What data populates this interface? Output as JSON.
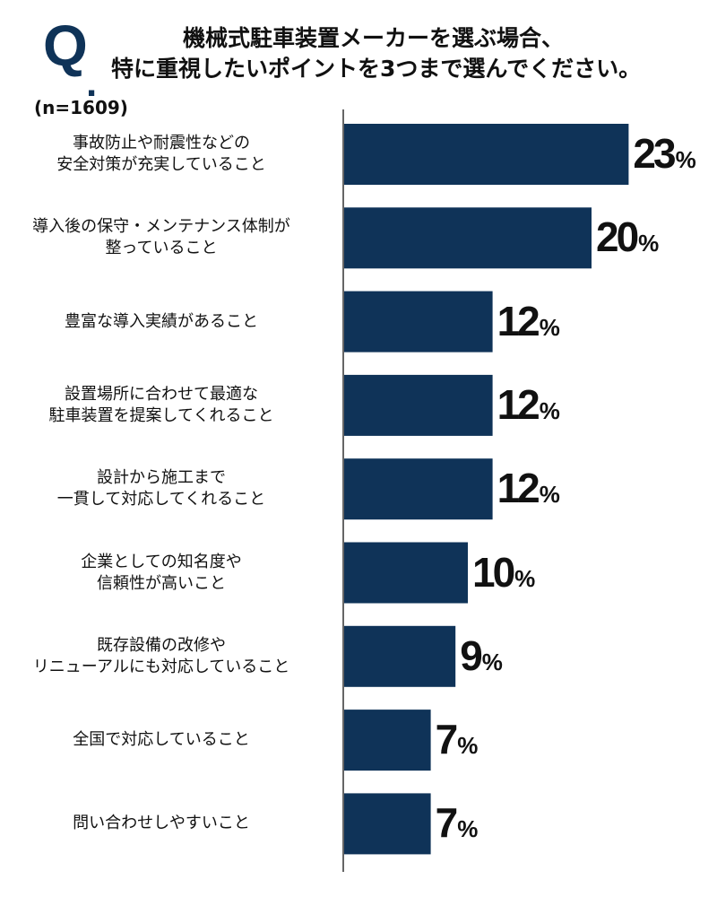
{
  "header": {
    "q_letter": "Q",
    "q_dot": ".",
    "title_line1": "機械式駐車装置メーカーを選ぶ場合、",
    "title_line2": "特に重視したいポイントを3つまで選んでください。",
    "sample_size": "(n=1609)"
  },
  "colors": {
    "bar": "#0f3358",
    "axis": "#333333"
  },
  "chart_data": {
    "type": "bar",
    "orientation": "horizontal",
    "unit": "%",
    "categories": [
      "事故防止や耐震性などの\n安全対策が充実していること",
      "導入後の保守・メンテナンス体制が\n整っていること",
      "豊富な導入実績があること",
      "設置場所に合わせて最適な\n駐車装置を提案してくれること",
      "設計から施工まで\n一貫して対応してくれること",
      "企業としての知名度や\n信頼性が高いこと",
      "既存設備の改修や\nリニューアルにも対応していること",
      "全国で対応していること",
      "問い合わせしやすいこと"
    ],
    "values": [
      23,
      20,
      12,
      12,
      12,
      10,
      9,
      7,
      7
    ],
    "xlim": [
      0,
      30
    ],
    "grid": false,
    "legend": "none"
  }
}
